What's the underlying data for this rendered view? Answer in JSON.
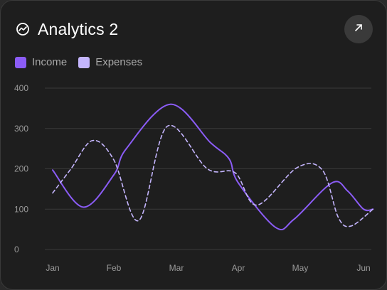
{
  "header": {
    "title": "Analytics 2",
    "title_icon": "trend-chart-icon",
    "expand_icon": "arrow-up-right-icon"
  },
  "legend": {
    "items": [
      {
        "label": "Income",
        "color": "#8b5cf6"
      },
      {
        "label": "Expenses",
        "color": "#c4b5fd"
      }
    ]
  },
  "chart_data": {
    "type": "line",
    "x": [
      "Jan",
      "Feb",
      "Mar",
      "Apr",
      "May",
      "Jun"
    ],
    "ylim": [
      0,
      400
    ],
    "yticks": [
      0,
      100,
      200,
      300,
      400
    ],
    "grid": true,
    "legend_position": "top-left",
    "series": [
      {
        "name": "Income",
        "color": "#8b5cf6",
        "style": "solid",
        "points": [
          [
            0,
            197
          ],
          [
            0.5,
            105
          ],
          [
            1.0,
            185
          ],
          [
            1.2,
            250
          ],
          [
            1.9,
            360
          ],
          [
            2.55,
            265
          ],
          [
            2.85,
            225
          ],
          [
            3.0,
            165
          ],
          [
            3.6,
            55
          ],
          [
            3.9,
            75
          ],
          [
            4.5,
            165
          ],
          [
            4.75,
            145
          ],
          [
            5.0,
            100
          ],
          [
            5.15,
            100
          ]
        ]
      },
      {
        "name": "Expenses",
        "color": "#c4b5fd",
        "style": "dashed",
        "points": [
          [
            0,
            140
          ],
          [
            0.3,
            200
          ],
          [
            0.65,
            270
          ],
          [
            1.0,
            222
          ],
          [
            1.4,
            72
          ],
          [
            1.85,
            305
          ],
          [
            2.5,
            200
          ],
          [
            2.95,
            190
          ],
          [
            3.3,
            110
          ],
          [
            3.95,
            203
          ],
          [
            4.35,
            197
          ],
          [
            4.6,
            80
          ],
          [
            4.8,
            58
          ],
          [
            5.15,
            100
          ]
        ]
      }
    ]
  }
}
